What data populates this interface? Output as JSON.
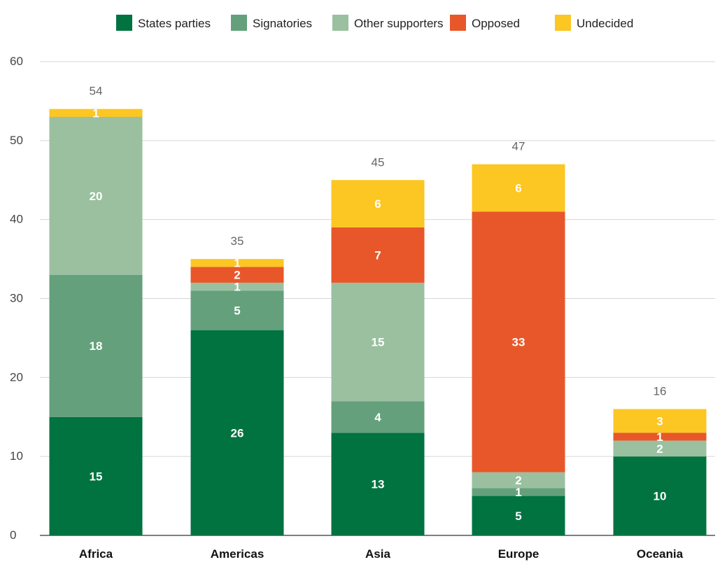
{
  "chart_data": {
    "type": "bar",
    "stacked": true,
    "title": "",
    "xlabel": "",
    "ylabel": "",
    "ylim": [
      0,
      60
    ],
    "yticks": [
      0,
      10,
      20,
      30,
      40,
      50,
      60
    ],
    "grid": true,
    "legend_position": "top",
    "categories": [
      "Africa",
      "Americas",
      "Asia",
      "Europe",
      "Oceania"
    ],
    "totals": [
      54,
      35,
      45,
      47,
      16
    ],
    "series": [
      {
        "name": "States parties",
        "color": "#007340",
        "values": [
          15,
          26,
          13,
          5,
          10
        ]
      },
      {
        "name": "Signatories",
        "color": "#64a07c",
        "values": [
          18,
          5,
          4,
          1,
          0
        ]
      },
      {
        "name": "Other supporters",
        "color": "#9ac0a0",
        "values": [
          20,
          1,
          15,
          2,
          2
        ]
      },
      {
        "name": "Opposed",
        "color": "#e8572a",
        "values": [
          0,
          2,
          7,
          33,
          1
        ]
      },
      {
        "name": "Undecided",
        "color": "#fcc623",
        "values": [
          1,
          1,
          6,
          6,
          3
        ]
      }
    ]
  }
}
